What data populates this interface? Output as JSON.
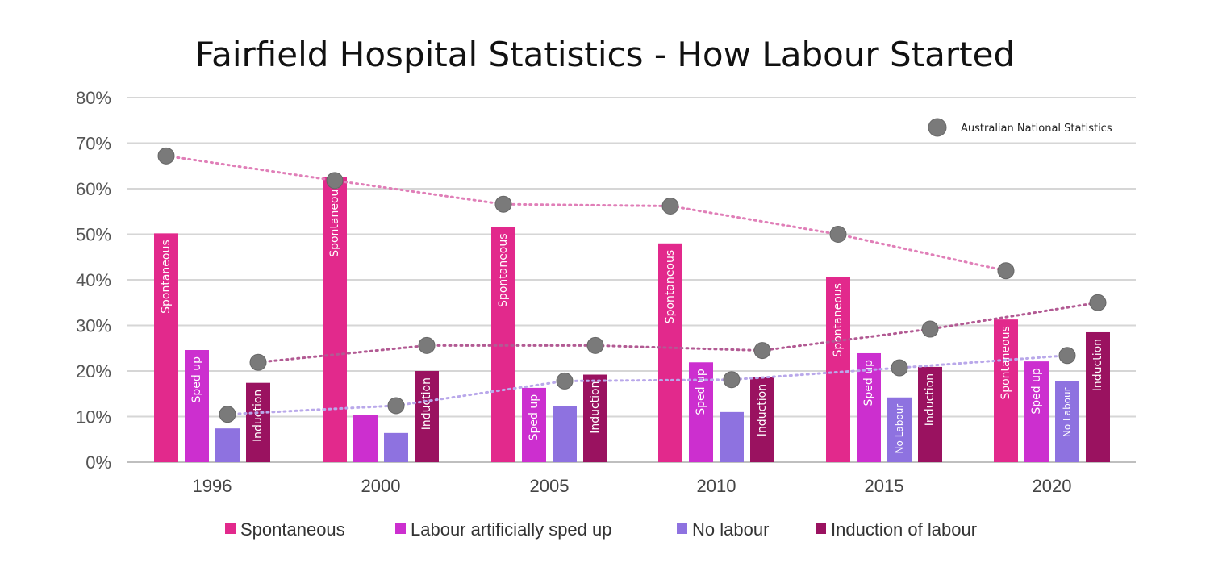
{
  "chart_data": {
    "type": "bar",
    "title": "Fairfield Hospital Statistics  - How Labour Started",
    "xlabel": "",
    "ylabel": "",
    "ylim": [
      0,
      80
    ],
    "yticks": [
      0,
      10,
      20,
      30,
      40,
      50,
      60,
      70,
      80
    ],
    "ytick_labels": [
      "0%",
      "10%",
      "20%",
      "30%",
      "40%",
      "50%",
      "60%",
      "70%",
      "80%"
    ],
    "categories": [
      "1996",
      "2000",
      "2005",
      "2010",
      "2015",
      "2020"
    ],
    "series": [
      {
        "name": "Spontaneous",
        "color": "#e2298c",
        "values": [
          50.2,
          62.6,
          51.6,
          48.0,
          40.7,
          31.3
        ],
        "bar_labels": [
          "Spontaneous",
          "Spontaneous",
          "Spontaneous",
          "Spontaneous",
          "Spontaneous",
          "Spontaneous"
        ]
      },
      {
        "name": "Labour artificially sped up",
        "color": "#cc2fcf",
        "values": [
          24.6,
          10.3,
          16.3,
          21.9,
          23.9,
          22.1
        ],
        "bar_labels": [
          "Sped up",
          "",
          "Sped up",
          "Sped up",
          "Sped up",
          "Sped up"
        ]
      },
      {
        "name": "No labour",
        "color": "#8e72e0",
        "values": [
          7.4,
          6.4,
          12.3,
          11.0,
          14.2,
          17.8
        ],
        "bar_labels": [
          "",
          "",
          "",
          "",
          "No Labour",
          "No Labour"
        ]
      },
      {
        "name": "Induction of labour",
        "color": "#9a1260",
        "values": [
          17.4,
          20.0,
          19.2,
          18.6,
          20.9,
          28.5
        ],
        "bar_labels": [
          "Induction",
          "Induction",
          "Induction",
          "Induction",
          "Induction",
          "Induction"
        ]
      }
    ],
    "national": {
      "name": "Australian National Statistics",
      "marker_color": "#7a7a7a",
      "lines": [
        {
          "series": "Spontaneous",
          "line_color": "#e07fb8",
          "values": [
            67.2,
            61.8,
            56.6,
            56.2,
            50.0,
            42.0
          ]
        },
        {
          "series": "Induction of labour",
          "line_color": "#b25a93",
          "values": [
            21.9,
            25.6,
            25.6,
            24.5,
            29.2,
            35.0
          ]
        },
        {
          "series": "No labour",
          "line_color": "#b9a8ea",
          "values": [
            10.5,
            12.4,
            17.8,
            18.1,
            20.7,
            23.4
          ]
        }
      ]
    },
    "legend": {
      "placement": "bottom",
      "entries": [
        "Spontaneous",
        "Labour artificially sped up",
        "No labour",
        "Induction of labour"
      ]
    },
    "national_legend_placement": "top-right",
    "grid": true
  }
}
